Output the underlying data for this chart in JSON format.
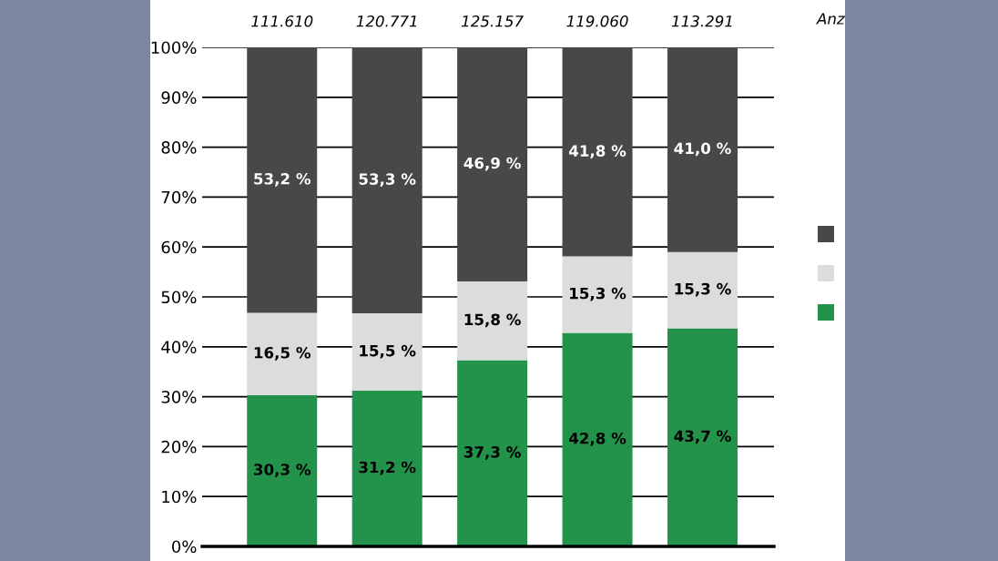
{
  "chart_data": {
    "type": "bar",
    "stacked": true,
    "categories": [
      null,
      null,
      null,
      null,
      null
    ],
    "series": [
      {
        "color": "#23924a",
        "values": [
          30.3,
          31.2,
          37.3,
          42.8,
          43.7
        ],
        "value_labels": [
          "30,3 %",
          "31,2 %",
          "37,3 %",
          "42,8 %",
          "43,7 %"
        ]
      },
      {
        "color": "#dcdcdc",
        "values": [
          16.5,
          15.5,
          15.8,
          15.3,
          15.3
        ],
        "value_labels": [
          "16,5 %",
          "15,5 %",
          "15,8 %",
          "15,3 %",
          "15,3 %"
        ]
      },
      {
        "color": "#484848",
        "values": [
          53.2,
          53.3,
          46.9,
          41.8,
          41.0
        ],
        "value_labels": [
          "53,2 %",
          "53,3 %",
          "46,9 %",
          "41,8 %",
          "41,0 %"
        ]
      }
    ],
    "annotations": [
      "111.610",
      "120.771",
      "125.157",
      "119.060",
      "113.291",
      "Anz"
    ],
    "ylim": [
      0,
      100
    ],
    "yticks": [
      {
        "value": 0,
        "label": "0%"
      },
      {
        "value": 10,
        "label": "10%"
      },
      {
        "value": 20,
        "label": "20%"
      },
      {
        "value": 30,
        "label": "30%"
      },
      {
        "value": 40,
        "label": "40%"
      },
      {
        "value": 50,
        "label": "50%"
      },
      {
        "value": 60,
        "label": "60%"
      },
      {
        "value": 70,
        "label": "70%"
      },
      {
        "value": 80,
        "label": "80%"
      },
      {
        "value": 90,
        "label": "90%"
      },
      {
        "value": 100,
        "label": "100%"
      }
    ],
    "grid": "y"
  }
}
